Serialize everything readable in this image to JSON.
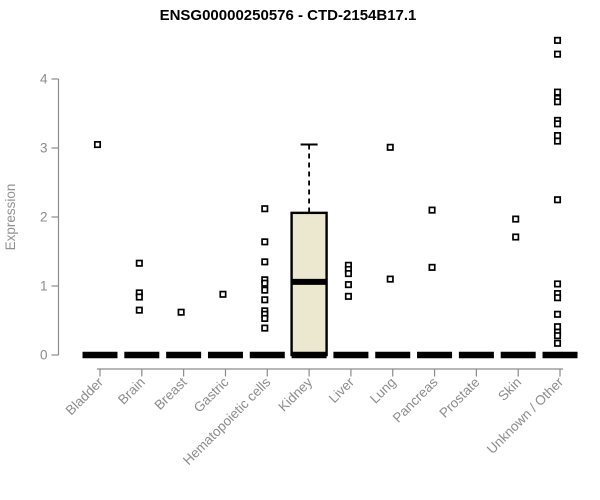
{
  "title": "ENSG00000250576 - CTD-2154B17.1",
  "chart_data": {
    "type": "boxplot",
    "title": "ENSG00000250576 - CTD-2154B17.1",
    "xlabel": "",
    "ylabel": "Expression",
    "ylim": [
      0,
      4.7
    ],
    "yticks": [
      0,
      1,
      2,
      3,
      4
    ],
    "grid": false,
    "legend": "none",
    "categories": [
      "Bladder",
      "Brain",
      "Breast",
      "Gastric",
      "Hematopoietic cells",
      "Kidney",
      "Liver",
      "Lung",
      "Pancreas",
      "Prostate",
      "Skin",
      "Unknown / Other"
    ],
    "boxes": [
      {
        "category": "Bladder",
        "q1": 0,
        "median": 0,
        "q3": 0,
        "whisker_low": 0,
        "whisker_high": 0,
        "outliers": [
          3.05
        ]
      },
      {
        "category": "Brain",
        "q1": 0,
        "median": 0,
        "q3": 0,
        "whisker_low": 0,
        "whisker_high": 0,
        "outliers": [
          1.33,
          0.9,
          0.84,
          0.65
        ]
      },
      {
        "category": "Breast",
        "q1": 0,
        "median": 0,
        "q3": 0,
        "whisker_low": 0,
        "whisker_high": 0,
        "outliers": [
          0.62
        ]
      },
      {
        "category": "Gastric",
        "q1": 0,
        "median": 0,
        "q3": 0,
        "whisker_low": 0,
        "whisker_high": 0,
        "outliers": [
          0.88
        ]
      },
      {
        "category": "Hematopoietic cells",
        "q1": 0,
        "median": 0,
        "q3": 0,
        "whisker_low": 0,
        "whisker_high": 0,
        "outliers": [
          2.12,
          1.64,
          1.35,
          1.09,
          1.04,
          0.94,
          0.8,
          0.64,
          0.59,
          0.53,
          0.39
        ]
      },
      {
        "category": "Kidney",
        "q1": 0,
        "median": 1.06,
        "q3": 2.06,
        "whisker_low": 0,
        "whisker_high": 3.05,
        "outliers": []
      },
      {
        "category": "Liver",
        "q1": 0,
        "median": 0,
        "q3": 0,
        "whisker_low": 0,
        "whisker_high": 0,
        "outliers": [
          1.3,
          1.24,
          1.18,
          1.02,
          0.85
        ]
      },
      {
        "category": "Lung",
        "q1": 0,
        "median": 0,
        "q3": 0,
        "whisker_low": 0,
        "whisker_high": 0,
        "outliers": [
          3.01,
          1.1
        ]
      },
      {
        "category": "Pancreas",
        "q1": 0,
        "median": 0,
        "q3": 0,
        "whisker_low": 0,
        "whisker_high": 0,
        "outliers": [
          2.1,
          1.27
        ]
      },
      {
        "category": "Prostate",
        "q1": 0,
        "median": 0,
        "q3": 0,
        "whisker_low": 0,
        "whisker_high": 0,
        "outliers": []
      },
      {
        "category": "Skin",
        "q1": 0,
        "median": 0,
        "q3": 0,
        "whisker_low": 0,
        "whisker_high": 0,
        "outliers": [
          1.97,
          1.71
        ]
      },
      {
        "category": "Unknown / Other",
        "q1": 0,
        "median": 0,
        "q3": 0,
        "whisker_low": 0,
        "whisker_high": 0,
        "outliers": [
          4.56,
          4.36,
          3.81,
          3.72,
          3.67,
          3.4,
          3.35,
          3.18,
          3.1,
          2.25,
          1.03,
          0.89,
          0.83,
          0.59,
          0.41,
          0.33,
          0.28,
          0.17
        ]
      }
    ],
    "colors": {
      "title": "#000000",
      "axis": "#8c8c8c",
      "tick_label": "#8c8c8c",
      "axis_name": "#919191",
      "box_fill": "#ece8cf",
      "box_stroke": "#000000",
      "median": "#000000",
      "zero_bar": "#000000",
      "whisker": "#000000",
      "point_fill": "#ffffff",
      "point_stroke": "#000000",
      "background": "#ffffff"
    }
  }
}
